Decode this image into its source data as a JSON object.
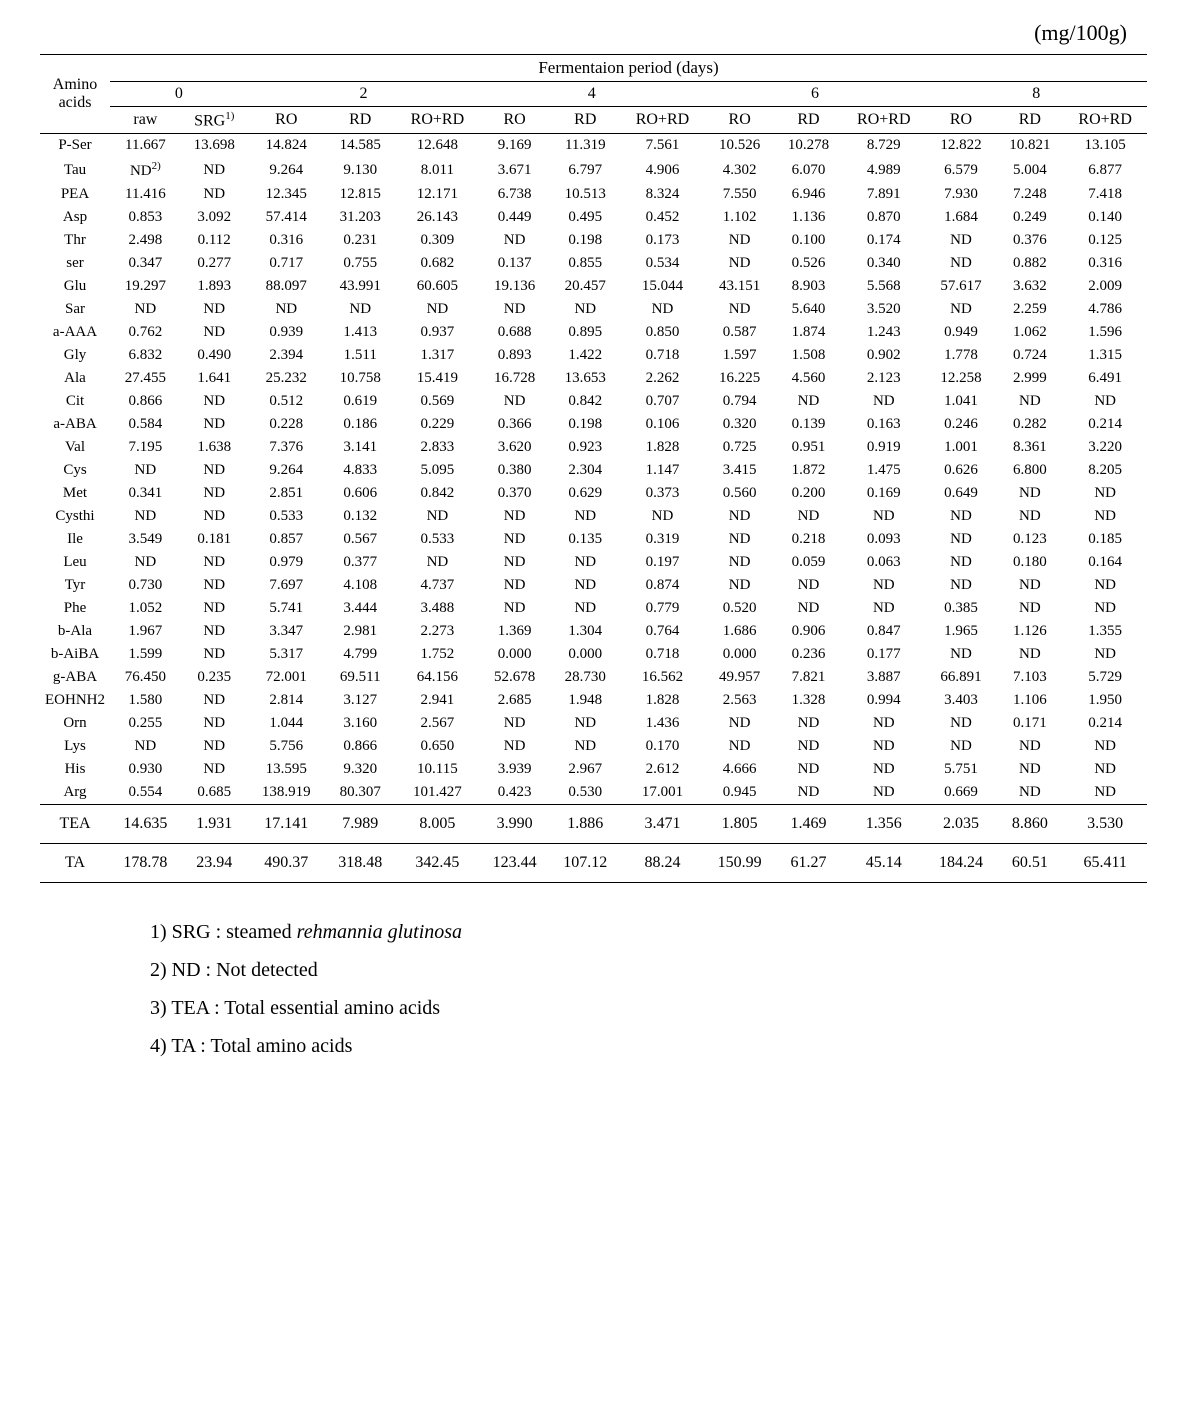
{
  "unit_label": "(mg/100g)",
  "header": {
    "amino_label": "Amino acids",
    "period_label": "Fermentaion period (days)",
    "day_groups": [
      "0",
      "2",
      "4",
      "6",
      "8"
    ],
    "sub_cols_0": [
      "raw",
      "SRG"
    ],
    "sub_cols_2to8": [
      "RO",
      "RD",
      "RO+RD"
    ],
    "srg_sup": "1)"
  },
  "rows": [
    {
      "label": "P-Ser",
      "v": [
        "11.667",
        "13.698",
        "14.824",
        "14.585",
        "12.648",
        "9.169",
        "11.319",
        "7.561",
        "10.526",
        "10.278",
        "8.729",
        "12.822",
        "10.821",
        "13.105"
      ]
    },
    {
      "label": "Tau",
      "v": [
        "ND",
        "ND",
        "9.264",
        "9.130",
        "8.011",
        "3.671",
        "6.797",
        "4.906",
        "4.302",
        "6.070",
        "4.989",
        "6.579",
        "5.004",
        "6.877"
      ],
      "sup": "2)"
    },
    {
      "label": "PEA",
      "v": [
        "11.416",
        "ND",
        "12.345",
        "12.815",
        "12.171",
        "6.738",
        "10.513",
        "8.324",
        "7.550",
        "6.946",
        "7.891",
        "7.930",
        "7.248",
        "7.418"
      ]
    },
    {
      "label": "Asp",
      "v": [
        "0.853",
        "3.092",
        "57.414",
        "31.203",
        "26.143",
        "0.449",
        "0.495",
        "0.452",
        "1.102",
        "1.136",
        "0.870",
        "1.684",
        "0.249",
        "0.140"
      ]
    },
    {
      "label": "Thr",
      "v": [
        "2.498",
        "0.112",
        "0.316",
        "0.231",
        "0.309",
        "ND",
        "0.198",
        "0.173",
        "ND",
        "0.100",
        "0.174",
        "ND",
        "0.376",
        "0.125"
      ]
    },
    {
      "label": "ser",
      "v": [
        "0.347",
        "0.277",
        "0.717",
        "0.755",
        "0.682",
        "0.137",
        "0.855",
        "0.534",
        "ND",
        "0.526",
        "0.340",
        "ND",
        "0.882",
        "0.316"
      ]
    },
    {
      "label": "Glu",
      "v": [
        "19.297",
        "1.893",
        "88.097",
        "43.991",
        "60.605",
        "19.136",
        "20.457",
        "15.044",
        "43.151",
        "8.903",
        "5.568",
        "57.617",
        "3.632",
        "2.009"
      ]
    },
    {
      "label": "Sar",
      "v": [
        "ND",
        "ND",
        "ND",
        "ND",
        "ND",
        "ND",
        "ND",
        "ND",
        "ND",
        "5.640",
        "3.520",
        "ND",
        "2.259",
        "4.786"
      ]
    },
    {
      "label": "a-AAA",
      "v": [
        "0.762",
        "ND",
        "0.939",
        "1.413",
        "0.937",
        "0.688",
        "0.895",
        "0.850",
        "0.587",
        "1.874",
        "1.243",
        "0.949",
        "1.062",
        "1.596"
      ]
    },
    {
      "label": "Gly",
      "v": [
        "6.832",
        "0.490",
        "2.394",
        "1.511",
        "1.317",
        "0.893",
        "1.422",
        "0.718",
        "1.597",
        "1.508",
        "0.902",
        "1.778",
        "0.724",
        "1.315"
      ]
    },
    {
      "label": "Ala",
      "v": [
        "27.455",
        "1.641",
        "25.232",
        "10.758",
        "15.419",
        "16.728",
        "13.653",
        "2.262",
        "16.225",
        "4.560",
        "2.123",
        "12.258",
        "2.999",
        "6.491"
      ]
    },
    {
      "label": "Cit",
      "v": [
        "0.866",
        "ND",
        "0.512",
        "0.619",
        "0.569",
        "ND",
        "0.842",
        "0.707",
        "0.794",
        "ND",
        "ND",
        "1.041",
        "ND",
        "ND"
      ]
    },
    {
      "label": "a-ABA",
      "v": [
        "0.584",
        "ND",
        "0.228",
        "0.186",
        "0.229",
        "0.366",
        "0.198",
        "0.106",
        "0.320",
        "0.139",
        "0.163",
        "0.246",
        "0.282",
        "0.214"
      ]
    },
    {
      "label": "Val",
      "v": [
        "7.195",
        "1.638",
        "7.376",
        "3.141",
        "2.833",
        "3.620",
        "0.923",
        "1.828",
        "0.725",
        "0.951",
        "0.919",
        "1.001",
        "8.361",
        "3.220"
      ]
    },
    {
      "label": "Cys",
      "v": [
        "ND",
        "ND",
        "9.264",
        "4.833",
        "5.095",
        "0.380",
        "2.304",
        "1.147",
        "3.415",
        "1.872",
        "1.475",
        "0.626",
        "6.800",
        "8.205"
      ]
    },
    {
      "label": "Met",
      "v": [
        "0.341",
        "ND",
        "2.851",
        "0.606",
        "0.842",
        "0.370",
        "0.629",
        "0.373",
        "0.560",
        "0.200",
        "0.169",
        "0.649",
        "ND",
        "ND"
      ]
    },
    {
      "label": "Cysthi",
      "v": [
        "ND",
        "ND",
        "0.533",
        "0.132",
        "ND",
        "ND",
        "ND",
        "ND",
        "ND",
        "ND",
        "ND",
        "ND",
        "ND",
        "ND"
      ]
    },
    {
      "label": "Ile",
      "v": [
        "3.549",
        "0.181",
        "0.857",
        "0.567",
        "0.533",
        "ND",
        "0.135",
        "0.319",
        "ND",
        "0.218",
        "0.093",
        "ND",
        "0.123",
        "0.185"
      ]
    },
    {
      "label": "Leu",
      "v": [
        "ND",
        "ND",
        "0.979",
        "0.377",
        "ND",
        "ND",
        "ND",
        "0.197",
        "ND",
        "0.059",
        "0.063",
        "ND",
        "0.180",
        "0.164"
      ]
    },
    {
      "label": "Tyr",
      "v": [
        "0.730",
        "ND",
        "7.697",
        "4.108",
        "4.737",
        "ND",
        "ND",
        "0.874",
        "ND",
        "ND",
        "ND",
        "ND",
        "ND",
        "ND"
      ]
    },
    {
      "label": "Phe",
      "v": [
        "1.052",
        "ND",
        "5.741",
        "3.444",
        "3.488",
        "ND",
        "ND",
        "0.779",
        "0.520",
        "ND",
        "ND",
        "0.385",
        "ND",
        "ND"
      ]
    },
    {
      "label": "b-Ala",
      "v": [
        "1.967",
        "ND",
        "3.347",
        "2.981",
        "2.273",
        "1.369",
        "1.304",
        "0.764",
        "1.686",
        "0.906",
        "0.847",
        "1.965",
        "1.126",
        "1.355"
      ]
    },
    {
      "label": "b-AiBA",
      "v": [
        "1.599",
        "ND",
        "5.317",
        "4.799",
        "1.752",
        "0.000",
        "0.000",
        "0.718",
        "0.000",
        "0.236",
        "0.177",
        "ND",
        "ND",
        "ND"
      ]
    },
    {
      "label": "g-ABA",
      "v": [
        "76.450",
        "0.235",
        "72.001",
        "69.511",
        "64.156",
        "52.678",
        "28.730",
        "16.562",
        "49.957",
        "7.821",
        "3.887",
        "66.891",
        "7.103",
        "5.729"
      ]
    },
    {
      "label": "EOHNH2",
      "v": [
        "1.580",
        "ND",
        "2.814",
        "3.127",
        "2.941",
        "2.685",
        "1.948",
        "1.828",
        "2.563",
        "1.328",
        "0.994",
        "3.403",
        "1.106",
        "1.950"
      ]
    },
    {
      "label": "Orn",
      "v": [
        "0.255",
        "ND",
        "1.044",
        "3.160",
        "2.567",
        "ND",
        "ND",
        "1.436",
        "ND",
        "ND",
        "ND",
        "ND",
        "0.171",
        "0.214"
      ]
    },
    {
      "label": "Lys",
      "v": [
        "ND",
        "ND",
        "5.756",
        "0.866",
        "0.650",
        "ND",
        "ND",
        "0.170",
        "ND",
        "ND",
        "ND",
        "ND",
        "ND",
        "ND"
      ]
    },
    {
      "label": "His",
      "v": [
        "0.930",
        "ND",
        "13.595",
        "9.320",
        "10.115",
        "3.939",
        "2.967",
        "2.612",
        "4.666",
        "ND",
        "ND",
        "5.751",
        "ND",
        "ND"
      ]
    },
    {
      "label": "Arg",
      "v": [
        "0.554",
        "0.685",
        "138.919",
        "80.307",
        "101.427",
        "0.423",
        "0.530",
        "17.001",
        "0.945",
        "ND",
        "ND",
        "0.669",
        "ND",
        "ND"
      ]
    }
  ],
  "summary": [
    {
      "label": "TEA",
      "v": [
        "14.635",
        "1.931",
        "17.141",
        "7.989",
        "8.005",
        "3.990",
        "1.886",
        "3.471",
        "1.805",
        "1.469",
        "1.356",
        "2.035",
        "8.860",
        "3.530"
      ]
    },
    {
      "label": "TA",
      "v": [
        "178.78",
        "23.94",
        "490.37",
        "318.48",
        "342.45",
        "123.44",
        "107.12",
        "88.24",
        "150.99",
        "61.27",
        "45.14",
        "184.24",
        "60.51",
        "65.411"
      ]
    }
  ],
  "footnotes": [
    {
      "num": "1)",
      "pre": "SRG : steamed ",
      "italic": "rehmannia glutinosa",
      "post": ""
    },
    {
      "num": "2)",
      "pre": "ND : Not detected",
      "italic": "",
      "post": ""
    },
    {
      "num": "3)",
      "pre": "TEA : Total essential amino acids",
      "italic": "",
      "post": ""
    },
    {
      "num": "4)",
      "pre": "TA : Total amino acids",
      "italic": "",
      "post": ""
    }
  ]
}
